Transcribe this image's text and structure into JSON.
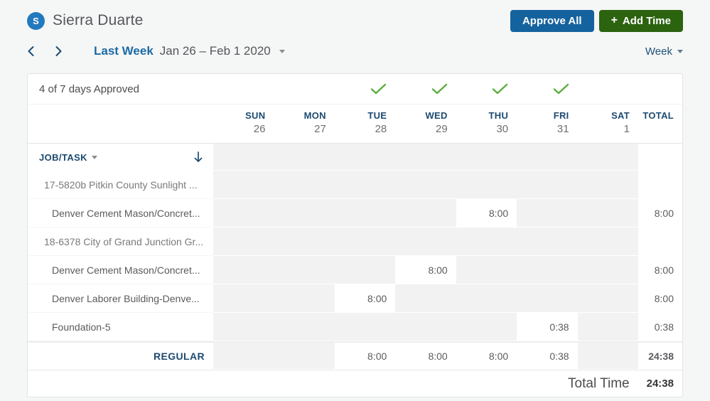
{
  "user": {
    "initial": "S",
    "name": "Sierra Duarte"
  },
  "actions": {
    "approve_all": "Approve All",
    "add_time_icon": "+",
    "add_time": "Add Time"
  },
  "nav": {
    "period_label": "Last Week",
    "period_range": "Jan 26 – Feb 1 2020",
    "view_label": "Week"
  },
  "approval": {
    "summary": "4 of 7 days Approved"
  },
  "table": {
    "job_task_header": "JOB/TASK",
    "total_header": "TOTAL",
    "days": [
      {
        "name": "SUN",
        "date": "26",
        "approved": false
      },
      {
        "name": "MON",
        "date": "27",
        "approved": false
      },
      {
        "name": "TUE",
        "date": "28",
        "approved": true
      },
      {
        "name": "WED",
        "date": "29",
        "approved": true
      },
      {
        "name": "THU",
        "date": "30",
        "approved": true
      },
      {
        "name": "FRI",
        "date": "31",
        "approved": true
      },
      {
        "name": "SAT",
        "date": "1",
        "approved": false
      }
    ],
    "rows": [
      {
        "type": "job",
        "label": "17-5820b Pitkin County Sunlight ...",
        "values": [
          "",
          "",
          "",
          "",
          "",
          "",
          ""
        ],
        "total": ""
      },
      {
        "type": "task",
        "label": "Denver Cement Mason/Concret...",
        "values": [
          "",
          "",
          "",
          "",
          "8:00",
          "",
          ""
        ],
        "total": "8:00"
      },
      {
        "type": "job",
        "label": "18-6378 City of Grand Junction Gr...",
        "values": [
          "",
          "",
          "",
          "",
          "",
          "",
          ""
        ],
        "total": ""
      },
      {
        "type": "task",
        "label": "Denver Cement Mason/Concret...",
        "values": [
          "",
          "",
          "",
          "8:00",
          "",
          "",
          ""
        ],
        "total": "8:00"
      },
      {
        "type": "task",
        "label": "Denver Laborer Building-Denve...",
        "values": [
          "",
          "",
          "8:00",
          "",
          "",
          "",
          ""
        ],
        "total": "8:00"
      },
      {
        "type": "task",
        "label": "Foundation-5",
        "values": [
          "",
          "",
          "",
          "",
          "",
          "0:38",
          ""
        ],
        "total": "0:38"
      }
    ],
    "summary_row": {
      "label": "REGULAR",
      "values": [
        "",
        "",
        "8:00",
        "8:00",
        "8:00",
        "0:38",
        ""
      ],
      "total": "24:38"
    }
  },
  "footer": {
    "label": "Total Time",
    "total": "24:38"
  },
  "colors": {
    "approve_button": "#15639e",
    "add_time_button": "#2c630f",
    "link_blue": "#1b6aa5",
    "navy": "#1d4a70",
    "check_green": "#5cae3e",
    "avatar_blue": "#2379bd"
  }
}
